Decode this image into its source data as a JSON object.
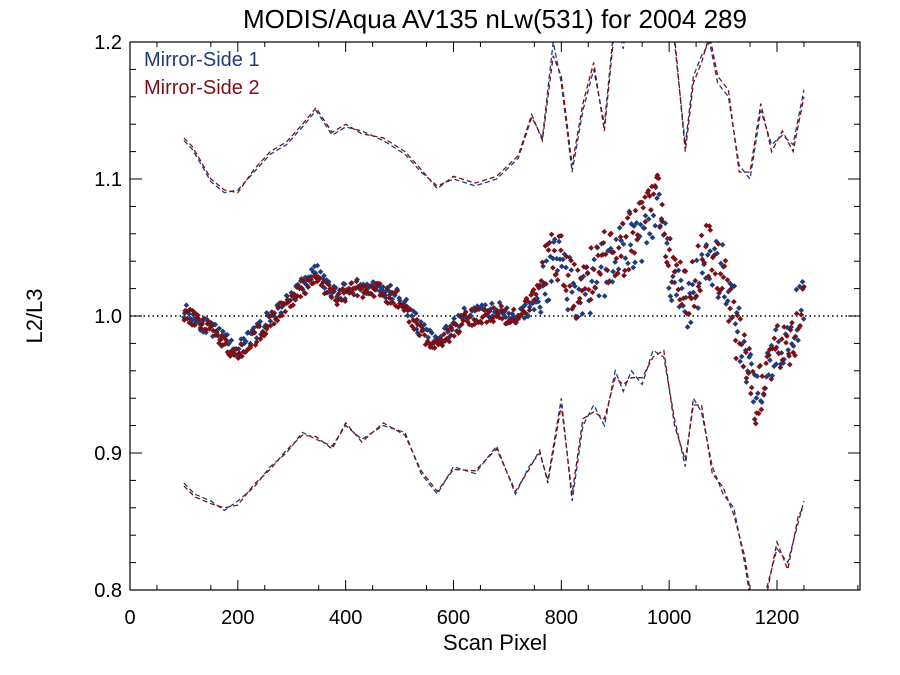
{
  "chart_data": {
    "type": "scatter",
    "title": "MODIS/Aqua AV135 nLw(531) for 2004 289",
    "xlabel": "Scan Pixel",
    "ylabel": "L2/L3",
    "xlim": [
      0,
      1354
    ],
    "ylim": [
      0.8,
      1.2
    ],
    "x_ticks": [
      0,
      200,
      400,
      600,
      800,
      1000,
      1200
    ],
    "y_ticks": [
      0.8,
      0.9,
      1.0,
      1.1,
      1.2
    ],
    "x_tick_labels": [
      "0",
      "200",
      "400",
      "600",
      "800",
      "1000",
      "1200"
    ],
    "y_tick_labels": [
      "0.8",
      "0.9",
      "1.0",
      "1.1",
      "1.2"
    ],
    "reference_line": 1.0,
    "legend_position": "top-left",
    "series": [
      {
        "name": "Mirror-Side 1",
        "color": "#1f3c78",
        "anchors_x": [
          100,
          150,
          200,
          250,
          300,
          345,
          380,
          420,
          460,
          500,
          540,
          570,
          620,
          680,
          720,
          760,
          790,
          830,
          880,
          920,
          950,
          980,
          1010,
          1040,
          1070,
          1100,
          1130,
          1160,
          1190,
          1220,
          1250
        ],
        "anchors_y": [
          1.005,
          0.99,
          0.975,
          0.995,
          1.015,
          1.033,
          1.015,
          1.022,
          1.02,
          1.015,
          0.99,
          0.98,
          1.0,
          1.005,
          1.0,
          1.01,
          1.04,
          1.01,
          1.035,
          1.055,
          1.06,
          1.08,
          1.02,
          1.01,
          1.04,
          1.03,
          0.985,
          0.945,
          0.975,
          0.985,
          1.01
        ],
        "upper_envelope_x": [
          100,
          115,
          130,
          150,
          175,
          200,
          230,
          260,
          290,
          320,
          345,
          375,
          400,
          430,
          470,
          510,
          540,
          570,
          600,
          640,
          680,
          720,
          745,
          765,
          785,
          800,
          820,
          840,
          860,
          880,
          900,
          915,
          930,
          950,
          970,
          990,
          1010,
          1030,
          1045,
          1060,
          1075,
          1090,
          1110,
          1130,
          1150,
          1170,
          1190,
          1210,
          1230,
          1250
        ],
        "upper_envelope_y": [
          1.128,
          1.122,
          1.112,
          1.098,
          1.09,
          1.092,
          1.105,
          1.118,
          1.125,
          1.138,
          1.15,
          1.132,
          1.138,
          1.135,
          1.128,
          1.118,
          1.105,
          1.095,
          1.1,
          1.095,
          1.1,
          1.115,
          1.145,
          1.13,
          1.2,
          1.17,
          1.105,
          1.15,
          1.18,
          1.14,
          1.22,
          1.195,
          1.25,
          1.21,
          1.26,
          1.22,
          1.2,
          1.125,
          1.175,
          1.19,
          1.2,
          1.17,
          1.16,
          1.11,
          1.1,
          1.15,
          1.125,
          1.132,
          1.125,
          1.165
        ],
        "lower_envelope_x": [
          100,
          120,
          150,
          175,
          200,
          230,
          260,
          290,
          320,
          345,
          375,
          400,
          430,
          470,
          510,
          540,
          570,
          600,
          640,
          680,
          715,
          740,
          760,
          775,
          800,
          820,
          840,
          860,
          880,
          900,
          915,
          930,
          950,
          970,
          990,
          1010,
          1030,
          1045,
          1060,
          1080,
          1100,
          1120,
          1140,
          1160,
          1180,
          1200,
          1220,
          1240,
          1250
        ],
        "lower_envelope_y": [
          0.878,
          0.87,
          0.865,
          0.858,
          0.865,
          0.875,
          0.89,
          0.9,
          0.915,
          0.91,
          0.905,
          0.92,
          0.91,
          0.92,
          0.915,
          0.885,
          0.87,
          0.89,
          0.885,
          0.905,
          0.87,
          0.89,
          0.9,
          0.88,
          0.94,
          0.865,
          0.92,
          0.935,
          0.92,
          0.96,
          0.945,
          0.96,
          0.95,
          0.975,
          0.97,
          0.925,
          0.89,
          0.94,
          0.93,
          0.89,
          0.87,
          0.86,
          0.82,
          0.77,
          0.8,
          0.83,
          0.82,
          0.85,
          0.865
        ]
      },
      {
        "name": "Mirror-Side 2",
        "color": "#7a1016",
        "anchors_x": [
          100,
          150,
          200,
          250,
          300,
          345,
          380,
          420,
          460,
          500,
          540,
          570,
          620,
          680,
          720,
          760,
          790,
          830,
          880,
          920,
          950,
          980,
          1010,
          1040,
          1070,
          1100,
          1130,
          1160,
          1190,
          1220,
          1250
        ],
        "anchors_y": [
          1.003,
          0.988,
          0.972,
          0.992,
          1.012,
          1.03,
          1.012,
          1.02,
          1.018,
          1.012,
          0.988,
          0.978,
          0.998,
          1.002,
          0.998,
          1.02,
          1.05,
          1.015,
          1.04,
          1.05,
          1.065,
          1.09,
          1.025,
          1.015,
          1.05,
          1.035,
          0.98,
          0.94,
          0.97,
          0.98,
          1.008
        ],
        "upper_envelope_x": [
          100,
          115,
          130,
          150,
          175,
          200,
          230,
          260,
          290,
          320,
          345,
          375,
          400,
          430,
          470,
          510,
          540,
          570,
          600,
          640,
          680,
          720,
          745,
          765,
          785,
          800,
          820,
          840,
          860,
          880,
          900,
          915,
          930,
          950,
          970,
          990,
          1010,
          1030,
          1045,
          1060,
          1075,
          1090,
          1110,
          1130,
          1150,
          1170,
          1190,
          1210,
          1230,
          1250
        ],
        "upper_envelope_y": [
          1.13,
          1.124,
          1.114,
          1.1,
          1.092,
          1.09,
          1.107,
          1.12,
          1.127,
          1.14,
          1.152,
          1.134,
          1.14,
          1.133,
          1.13,
          1.12,
          1.107,
          1.093,
          1.102,
          1.097,
          1.102,
          1.117,
          1.147,
          1.128,
          1.19,
          1.175,
          1.11,
          1.155,
          1.185,
          1.135,
          1.215,
          1.2,
          1.245,
          1.215,
          1.25,
          1.225,
          1.205,
          1.12,
          1.17,
          1.185,
          1.205,
          1.175,
          1.165,
          1.105,
          1.105,
          1.155,
          1.12,
          1.135,
          1.12,
          1.16
        ],
        "lower_envelope_x": [
          100,
          120,
          150,
          175,
          200,
          230,
          260,
          290,
          320,
          345,
          375,
          400,
          430,
          470,
          510,
          540,
          570,
          600,
          640,
          680,
          715,
          740,
          760,
          775,
          800,
          820,
          840,
          860,
          880,
          900,
          915,
          930,
          950,
          970,
          990,
          1010,
          1030,
          1045,
          1060,
          1080,
          1100,
          1120,
          1140,
          1160,
          1180,
          1200,
          1220,
          1240,
          1250
        ],
        "lower_envelope_y": [
          0.876,
          0.868,
          0.863,
          0.86,
          0.862,
          0.877,
          0.888,
          0.902,
          0.913,
          0.912,
          0.903,
          0.922,
          0.908,
          0.922,
          0.913,
          0.887,
          0.872,
          0.888,
          0.887,
          0.903,
          0.872,
          0.888,
          0.902,
          0.878,
          0.935,
          0.87,
          0.925,
          0.93,
          0.925,
          0.955,
          0.95,
          0.955,
          0.955,
          0.97,
          0.975,
          0.92,
          0.895,
          0.935,
          0.935,
          0.885,
          0.875,
          0.855,
          0.825,
          0.775,
          0.795,
          0.835,
          0.815,
          0.855,
          0.86
        ]
      }
    ]
  }
}
